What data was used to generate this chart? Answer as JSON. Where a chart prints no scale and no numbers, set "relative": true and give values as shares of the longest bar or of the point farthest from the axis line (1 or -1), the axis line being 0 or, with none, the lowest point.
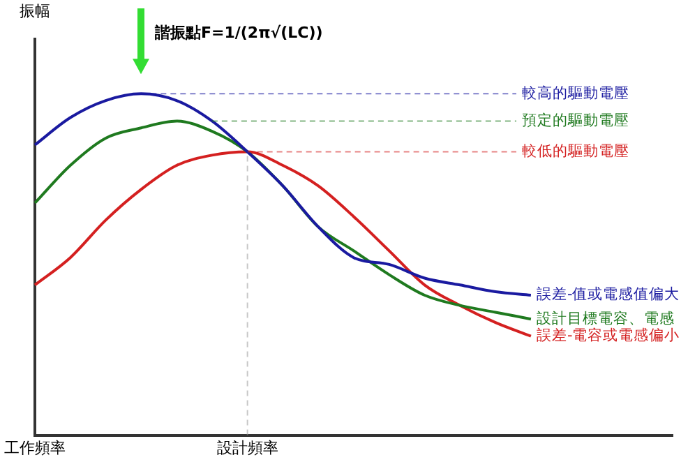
{
  "chart_data": {
    "type": "line",
    "relative": true,
    "ylabel": "振幅",
    "categories": [
      "工作頻率",
      null,
      null,
      null,
      null,
      null,
      "設計頻率",
      null,
      null,
      null,
      null,
      null,
      null,
      null,
      null,
      null,
      null,
      null,
      null
    ],
    "series": [
      {
        "name": "誤差-值或電感值偏大",
        "color": "#1a1aa0",
        "values": [
          0.85,
          0.93,
          0.98,
          1,
          0.98,
          0.92,
          0.83,
          0.73,
          0.61,
          0.52,
          0.5,
          0.46,
          0.44,
          0.42,
          0.41,
          null,
          null,
          null,
          null
        ]
      },
      {
        "name": "設計目標電容、電感",
        "color": "#1f7a1f",
        "values": [
          0.68,
          0.79,
          0.87,
          0.9,
          0.92,
          0.89,
          0.83,
          0.73,
          0.61,
          0.54,
          0.47,
          0.41,
          0.38,
          0.36,
          0.34,
          null,
          null,
          null,
          null
        ]
      },
      {
        "name": "誤差-電容或電感偏小",
        "color": "#d42020",
        "values": [
          0.44,
          0.52,
          0.63,
          0.72,
          0.79,
          0.82,
          0.83,
          0.79,
          0.73,
          0.64,
          0.54,
          0.44,
          0.38,
          0.33,
          0.29,
          null,
          null,
          null,
          null
        ]
      }
    ],
    "ref_lines": [
      {
        "axis": "y",
        "value": 1,
        "label": "較高的驅動電壓",
        "color": "#1a1aa0",
        "line_style": "dashed"
      },
      {
        "axis": "y",
        "value": 0.92,
        "label": "預定的驅動電壓",
        "color": "#1f7a1f",
        "line_style": "dashed"
      },
      {
        "axis": "y",
        "value": 0.83,
        "label": "較低的驅動電壓",
        "color": "#d42020",
        "line_style": "dashed"
      },
      {
        "axis": "x",
        "value": "設計頻率",
        "color": "#999999",
        "line_style": "dashed"
      }
    ],
    "annotations": [
      "諧振點F=1/(2π√(LC))"
    ],
    "grid": false,
    "legend": false,
    "marker": "none",
    "line_style": "solid"
  }
}
